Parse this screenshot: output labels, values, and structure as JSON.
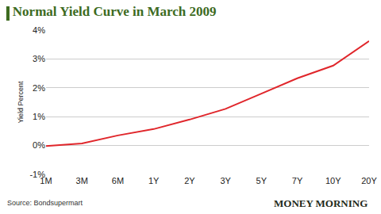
{
  "chart_data": {
    "type": "line",
    "title": "Normal Yield Curve in March 2009",
    "y_label": "Yield Percent",
    "categories": [
      "1M",
      "3M",
      "6M",
      "1Y",
      "2Y",
      "3Y",
      "5Y",
      "7Y",
      "10Y",
      "20Y"
    ],
    "values": [
      -0.02,
      0.07,
      0.35,
      0.57,
      0.9,
      1.27,
      1.8,
      2.33,
      2.77,
      3.62
    ],
    "color": "#e0262b",
    "ylim": [
      -1,
      4
    ],
    "yticks": [
      {
        "value": -1,
        "label": "-1%"
      },
      {
        "value": 0,
        "label": "0%"
      },
      {
        "value": 1,
        "label": "1%"
      },
      {
        "value": 2,
        "label": "2%"
      },
      {
        "value": 3,
        "label": "3%"
      },
      {
        "value": 4,
        "label": "4%"
      }
    ],
    "grid": true,
    "annotations": [
      "Source: Bondsupermart",
      "MONEY MORNING"
    ]
  }
}
